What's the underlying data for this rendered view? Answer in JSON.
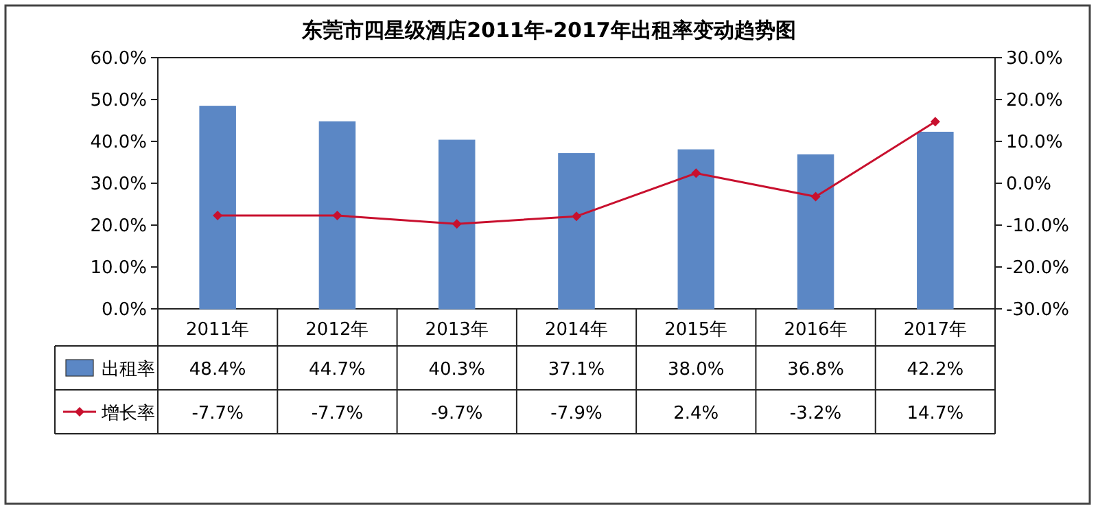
{
  "chart_data": {
    "type": "bar",
    "title": "东莞市四星级酒店2011年-2017年出租率变动趋势图",
    "categories": [
      "2011年",
      "2012年",
      "2013年",
      "2014年",
      "2015年",
      "2016年",
      "2017年"
    ],
    "series": [
      {
        "name": "出租率",
        "color": "#5b87c5",
        "values": [
          48.4,
          44.7,
          40.3,
          37.1,
          38.0,
          36.8,
          42.2
        ],
        "value_labels": [
          "48.4%",
          "44.7%",
          "40.3%",
          "37.1%",
          "38.0%",
          "36.8%",
          "42.2%"
        ]
      },
      {
        "name": "增长率",
        "type": "line",
        "axis": "y2",
        "color": "#c8102e",
        "marker": "diamond",
        "values": [
          -7.7,
          -7.7,
          -9.7,
          -7.9,
          2.4,
          -3.2,
          14.7
        ],
        "value_labels": [
          "-7.7%",
          "-7.7%",
          "-9.7%",
          "-7.9%",
          "2.4%",
          "-3.2%",
          "14.7%"
        ]
      }
    ],
    "ylim": [
      0,
      60
    ],
    "yticks": [
      {
        "value": 0,
        "label": "0.0%"
      },
      {
        "value": 10,
        "label": "10.0%"
      },
      {
        "value": 20,
        "label": "20.0%"
      },
      {
        "value": 30,
        "label": "30.0%"
      },
      {
        "value": 40,
        "label": "40.0%"
      },
      {
        "value": 50,
        "label": "50.0%"
      },
      {
        "value": 60,
        "label": "60.0%"
      }
    ],
    "y2lim": [
      -30,
      30
    ],
    "y2ticks": [
      {
        "value": -30,
        "label": "-30.0%"
      },
      {
        "value": -20,
        "label": "-20.0%"
      },
      {
        "value": -10,
        "label": "-10.0%"
      },
      {
        "value": 0,
        "label": "0.0%"
      },
      {
        "value": 10,
        "label": "10.0%"
      },
      {
        "value": 20,
        "label": "20.0%"
      },
      {
        "value": 30,
        "label": "30.0%"
      }
    ],
    "legend": "bottom"
  }
}
